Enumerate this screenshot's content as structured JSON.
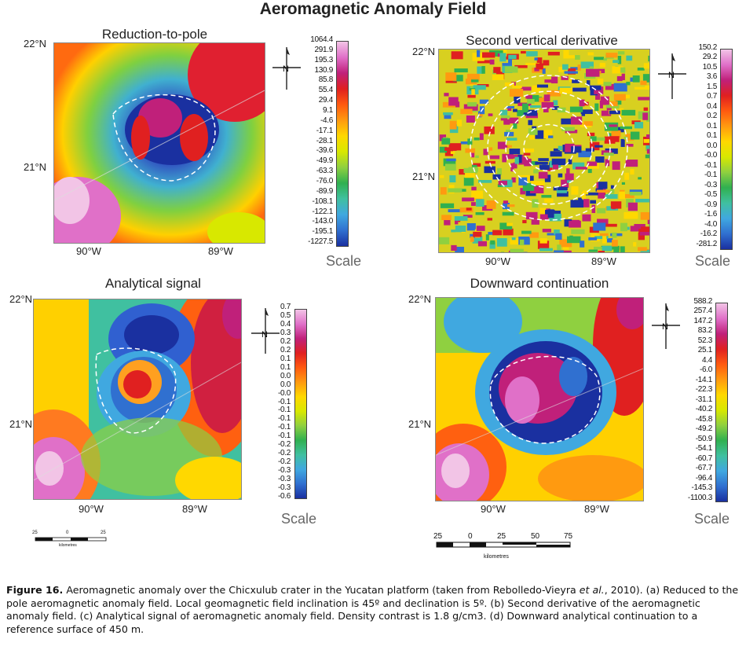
{
  "figure_title": "Aeromagnetic Anomaly Field",
  "scale_word": "Scale",
  "panels": [
    {
      "id": "a",
      "title": "Reduction-to-pole",
      "lat_top": "22°N",
      "lat_mid": "21°N",
      "lon_left": "90°W",
      "lon_right": "89°W",
      "ticks": [
        "1064.4",
        "291.9",
        "195.3",
        "130.9",
        "85.8",
        "55.4",
        "29.4",
        "9.1",
        "-4.6",
        "-17.1",
        "-28.1",
        "-39.6",
        "-49.9",
        "-63.3",
        "-76.0",
        "-89.9",
        "-108.1",
        "-122.1",
        "-143.0",
        "-195.1",
        "-1227.5"
      ]
    },
    {
      "id": "b",
      "title": "Second vertical derivative",
      "lat_top": "22°N",
      "lat_mid": "21°N",
      "lon_left": "90°W",
      "lon_right": "89°W",
      "ticks": [
        "150.2",
        "29.2",
        "10.5",
        "3.6",
        "1.5",
        "0.7",
        "0.4",
        "0.2",
        "0.1",
        "0.1",
        "0.0",
        "-0.0",
        "-0.1",
        "-0.1",
        "-0.3",
        "-0.5",
        "-0.9",
        "-1.6",
        "-4.0",
        "-16.2",
        "-281.2"
      ]
    },
    {
      "id": "c",
      "title": "Analytical signal",
      "lat_top": "22°N",
      "lat_mid": "21°N",
      "lon_left": "90°W",
      "lon_right": "89°W",
      "ticks": [
        "0.7",
        "0.5",
        "0.4",
        "0.3",
        "0.2",
        "0.2",
        "0.1",
        "0.1",
        "0.0",
        "0.0",
        "-0.0",
        "-0.1",
        "-0.1",
        "-0.1",
        "-0.1",
        "-0.1",
        "-0.2",
        "-0.2",
        "-0.2",
        "-0.3",
        "-0.3",
        "-0.3",
        "-0.6"
      ]
    },
    {
      "id": "d",
      "title": "Downward continuation",
      "lat_top": "22°N",
      "lat_mid": "21°N",
      "lon_left": "90°W",
      "lon_right": "89°W",
      "ticks": [
        "588.2",
        "257.4",
        "147.2",
        "83.2",
        "52.3",
        "25.1",
        "4.4",
        "-6.0",
        "-14.1",
        "-22.3",
        "-31.1",
        "-40.2",
        "-45.8",
        "-49.2",
        "-50.9",
        "-54.1",
        "-60.7",
        "-67.7",
        "-96.4",
        "-145.3",
        "-1100.3"
      ]
    }
  ],
  "scalebar_left": {
    "ticks": [
      "25",
      "0",
      "25"
    ],
    "unit": "kilometres"
  },
  "scalebar_right": {
    "ticks": [
      "25",
      "0",
      "25",
      "50",
      "75"
    ],
    "unit": "kilometres"
  },
  "caption": {
    "label": "Figure 16.",
    "line1": " Aeromagnetic anomaly over the Chicxulub crater in the Yucatan platform (taken from Rebolledo-Vieyra ",
    "etal": "et al.",
    "line1b": ", 2010). (a) Reduced to the pole aeromagnetic anomaly field. Local geomagnetic field inclination is 45º and declination is 5º. (b) Second derivative of the aeromagnetic anomaly field. (c) Analytical signal of aeromagnetic anomaly field. Density contrast is 1.8 g/cm3. (d) Downward analytical continuation to a reference surface of 450 m."
  },
  "colors": {
    "ramp": [
      "#f2c4e6",
      "#e070c8",
      "#c0207a",
      "#e02020",
      "#ff5a10",
      "#ff9a10",
      "#ffd800",
      "#d8e800",
      "#8fd040",
      "#30b050",
      "#40c0a0",
      "#40a8e0",
      "#3070d0",
      "#1a30a0"
    ]
  }
}
